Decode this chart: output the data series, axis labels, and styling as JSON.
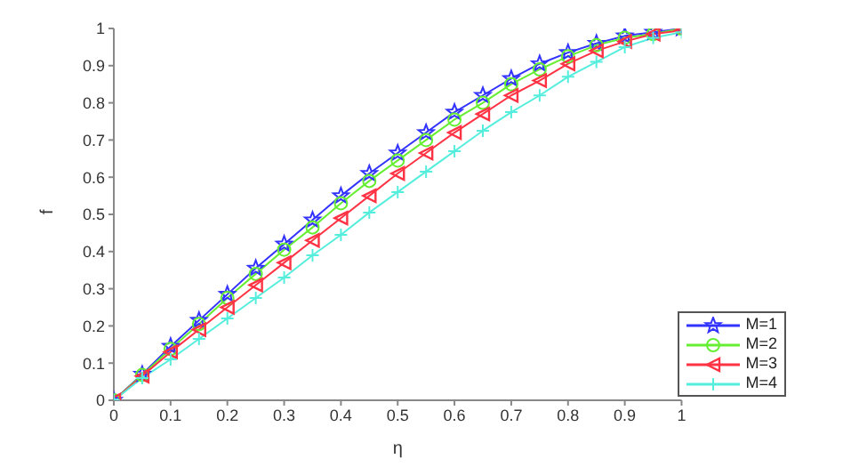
{
  "chart_data": {
    "type": "line",
    "xlabel": "η",
    "ylabel": "f",
    "x": [
      0,
      0.05,
      0.1,
      0.15,
      0.2,
      0.25,
      0.3,
      0.35,
      0.4,
      0.45,
      0.5,
      0.55,
      0.6,
      0.65,
      0.7,
      0.75,
      0.8,
      0.85,
      0.9,
      0.95,
      1
    ],
    "series": [
      {
        "name": "M=1",
        "color": "#3333ff",
        "marker": "star",
        "values": [
          0,
          0.07,
          0.145,
          0.215,
          0.285,
          0.355,
          0.42,
          0.485,
          0.55,
          0.61,
          0.665,
          0.72,
          0.775,
          0.82,
          0.865,
          0.905,
          0.935,
          0.96,
          0.98,
          0.99,
          1
        ]
      },
      {
        "name": "M=2",
        "color": "#66ee33",
        "marker": "circle",
        "values": [
          0,
          0.068,
          0.138,
          0.205,
          0.275,
          0.34,
          0.405,
          0.465,
          0.53,
          0.59,
          0.645,
          0.7,
          0.755,
          0.8,
          0.85,
          0.89,
          0.925,
          0.955,
          0.975,
          0.985,
          1
        ]
      },
      {
        "name": "M=3",
        "color": "#ff3344",
        "marker": "triangle",
        "values": [
          0,
          0.065,
          0.13,
          0.19,
          0.25,
          0.31,
          0.37,
          0.43,
          0.49,
          0.55,
          0.61,
          0.665,
          0.72,
          0.77,
          0.82,
          0.86,
          0.905,
          0.94,
          0.965,
          0.985,
          0.995
        ]
      },
      {
        "name": "M=4",
        "color": "#55eedd",
        "marker": "cross",
        "values": [
          0,
          0.06,
          0.11,
          0.165,
          0.22,
          0.275,
          0.33,
          0.39,
          0.445,
          0.505,
          0.56,
          0.615,
          0.67,
          0.725,
          0.775,
          0.82,
          0.87,
          0.91,
          0.95,
          0.975,
          0.99
        ]
      }
    ],
    "xlim": [
      0,
      1
    ],
    "xticks": [
      0,
      0.1,
      0.2,
      0.3,
      0.4,
      0.5,
      0.6,
      0.7,
      0.8,
      0.9,
      1
    ],
    "ylim": [
      0,
      1
    ],
    "yticks": [
      0,
      0.1,
      0.2,
      0.3,
      0.4,
      0.5,
      0.6,
      0.7,
      0.8,
      0.9,
      1
    ],
    "grid": false,
    "legend": "bottom right",
    "line_style": "solid"
  }
}
